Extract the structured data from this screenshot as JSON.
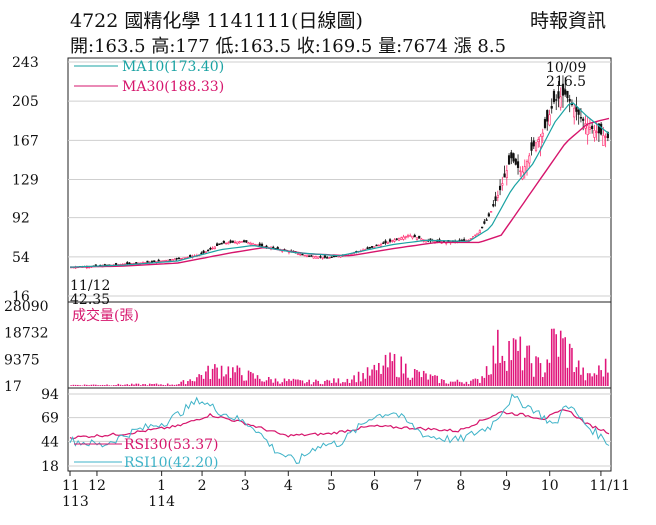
{
  "header": {
    "title": "4722 國精化學 1141111(日線圖)",
    "source": "時報資訊",
    "summary": "開:163.5 高:177 低:163.5 收:169.5 量:7674 漲 8.5"
  },
  "colors": {
    "candle_up": "#ff2a6e",
    "candle_down": "#111111",
    "ma10": "#1aa3a3",
    "ma30": "#d6156c",
    "volume": "#e0157a",
    "rsi30": "#d6156c",
    "rsi10": "#3fb3c8",
    "grid": "#cfcfcf"
  },
  "chart_data": [
    {
      "type": "candlestick",
      "panel": "price",
      "y_ticks": [
        243,
        205,
        167,
        129,
        92,
        54,
        16
      ],
      "ylim": [
        16,
        243
      ],
      "legend": [
        {
          "label": "MA10(173.40)",
          "series": "ma10"
        },
        {
          "label": "MA30(188.33)",
          "series": "ma30"
        }
      ],
      "annotations": [
        {
          "label_date": "10/09",
          "label_value": "216.5",
          "kind": "high"
        },
        {
          "label_date": "11/12",
          "label_value": "42.35",
          "kind": "low"
        }
      ],
      "close_profile": [
        [
          0,
          44
        ],
        [
          0.05,
          45
        ],
        [
          0.1,
          47
        ],
        [
          0.15,
          49
        ],
        [
          0.2,
          52
        ],
        [
          0.24,
          56
        ],
        [
          0.28,
          67
        ],
        [
          0.32,
          69
        ],
        [
          0.36,
          64
        ],
        [
          0.4,
          60
        ],
        [
          0.44,
          55
        ],
        [
          0.48,
          53
        ],
        [
          0.52,
          57
        ],
        [
          0.56,
          63
        ],
        [
          0.6,
          70
        ],
        [
          0.63,
          75
        ],
        [
          0.66,
          70
        ],
        [
          0.7,
          68
        ],
        [
          0.74,
          70
        ],
        [
          0.76,
          78
        ],
        [
          0.78,
          95
        ],
        [
          0.8,
          120
        ],
        [
          0.82,
          150
        ],
        [
          0.84,
          135
        ],
        [
          0.86,
          160
        ],
        [
          0.88,
          175
        ],
        [
          0.9,
          205
        ],
        [
          0.92,
          212
        ],
        [
          0.94,
          196
        ],
        [
          0.96,
          182
        ],
        [
          0.98,
          175
        ],
        [
          1.0,
          169.5
        ]
      ],
      "ma10_profile": [
        [
          0,
          44
        ],
        [
          0.1,
          46
        ],
        [
          0.2,
          50
        ],
        [
          0.28,
          61
        ],
        [
          0.34,
          65
        ],
        [
          0.42,
          58
        ],
        [
          0.5,
          55
        ],
        [
          0.6,
          66
        ],
        [
          0.66,
          70
        ],
        [
          0.74,
          69
        ],
        [
          0.78,
          82
        ],
        [
          0.82,
          120
        ],
        [
          0.86,
          145
        ],
        [
          0.9,
          185
        ],
        [
          0.93,
          205
        ],
        [
          0.96,
          190
        ],
        [
          1.0,
          173.4
        ]
      ],
      "ma30_profile": [
        [
          0,
          44
        ],
        [
          0.1,
          45
        ],
        [
          0.2,
          48
        ],
        [
          0.3,
          58
        ],
        [
          0.36,
          63
        ],
        [
          0.44,
          57
        ],
        [
          0.52,
          55
        ],
        [
          0.6,
          62
        ],
        [
          0.68,
          68
        ],
        [
          0.76,
          68
        ],
        [
          0.8,
          75
        ],
        [
          0.84,
          105
        ],
        [
          0.88,
          135
        ],
        [
          0.92,
          165
        ],
        [
          0.96,
          183
        ],
        [
          1.0,
          188.33
        ]
      ]
    },
    {
      "type": "bar",
      "panel": "volume",
      "legend": [
        {
          "label": "成交量(張)",
          "series": "volume"
        }
      ],
      "y_ticks": [
        28090,
        18732,
        9375,
        17
      ],
      "ylim": [
        0,
        28090
      ],
      "volume_profile": [
        [
          0,
          400
        ],
        [
          0.2,
          700
        ],
        [
          0.24,
          4000
        ],
        [
          0.28,
          7000
        ],
        [
          0.32,
          4500
        ],
        [
          0.36,
          2500
        ],
        [
          0.44,
          1500
        ],
        [
          0.5,
          2000
        ],
        [
          0.56,
          5000
        ],
        [
          0.6,
          9000
        ],
        [
          0.64,
          5000
        ],
        [
          0.7,
          1500
        ],
        [
          0.76,
          2000
        ],
        [
          0.8,
          16000
        ],
        [
          0.84,
          12000
        ],
        [
          0.88,
          6000
        ],
        [
          0.9,
          18000
        ],
        [
          0.92,
          15000
        ],
        [
          0.96,
          3000
        ],
        [
          1.0,
          7674
        ]
      ]
    },
    {
      "type": "line",
      "panel": "rsi",
      "legend": [
        {
          "label": "RSI30(53.37)",
          "series": "rsi30"
        },
        {
          "label": "RSI10(42.20)",
          "series": "rsi10"
        }
      ],
      "y_ticks": [
        94,
        69,
        44,
        18
      ],
      "ylim": [
        18,
        94
      ],
      "rsi30_profile": [
        [
          0,
          48
        ],
        [
          0.1,
          52
        ],
        [
          0.2,
          60
        ],
        [
          0.26,
          72
        ],
        [
          0.32,
          64
        ],
        [
          0.4,
          50
        ],
        [
          0.48,
          52
        ],
        [
          0.56,
          60
        ],
        [
          0.64,
          58
        ],
        [
          0.72,
          55
        ],
        [
          0.8,
          75
        ],
        [
          0.84,
          72
        ],
        [
          0.88,
          68
        ],
        [
          0.92,
          78
        ],
        [
          0.96,
          62
        ],
        [
          1.0,
          53.37
        ]
      ],
      "rsi10_profile": [
        [
          0,
          45
        ],
        [
          0.06,
          40
        ],
        [
          0.12,
          55
        ],
        [
          0.18,
          65
        ],
        [
          0.24,
          88
        ],
        [
          0.28,
          75
        ],
        [
          0.34,
          60
        ],
        [
          0.38,
          35
        ],
        [
          0.42,
          22
        ],
        [
          0.46,
          40
        ],
        [
          0.5,
          42
        ],
        [
          0.56,
          70
        ],
        [
          0.6,
          75
        ],
        [
          0.66,
          50
        ],
        [
          0.72,
          45
        ],
        [
          0.78,
          60
        ],
        [
          0.82,
          90
        ],
        [
          0.86,
          78
        ],
        [
          0.9,
          60
        ],
        [
          0.92,
          85
        ],
        [
          0.96,
          60
        ],
        [
          1.0,
          42.2
        ]
      ]
    }
  ],
  "x_axis": {
    "ticks": [
      {
        "label": "11",
        "sub": "113",
        "pos": 0.0
      },
      {
        "label": "12",
        "sub": "",
        "pos": 0.05
      },
      {
        "label": "1",
        "sub": "114",
        "pos": 0.17
      },
      {
        "label": "2",
        "sub": "",
        "pos": 0.245
      },
      {
        "label": "3",
        "sub": "",
        "pos": 0.325
      },
      {
        "label": "4",
        "sub": "",
        "pos": 0.405
      },
      {
        "label": "5",
        "sub": "",
        "pos": 0.485
      },
      {
        "label": "6",
        "sub": "",
        "pos": 0.565
      },
      {
        "label": "7",
        "sub": "",
        "pos": 0.645
      },
      {
        "label": "8",
        "sub": "",
        "pos": 0.725
      },
      {
        "label": "9",
        "sub": "",
        "pos": 0.81
      },
      {
        "label": "10",
        "sub": "",
        "pos": 0.89
      },
      {
        "label": "11/11",
        "sub": "",
        "pos": 0.985
      }
    ]
  }
}
